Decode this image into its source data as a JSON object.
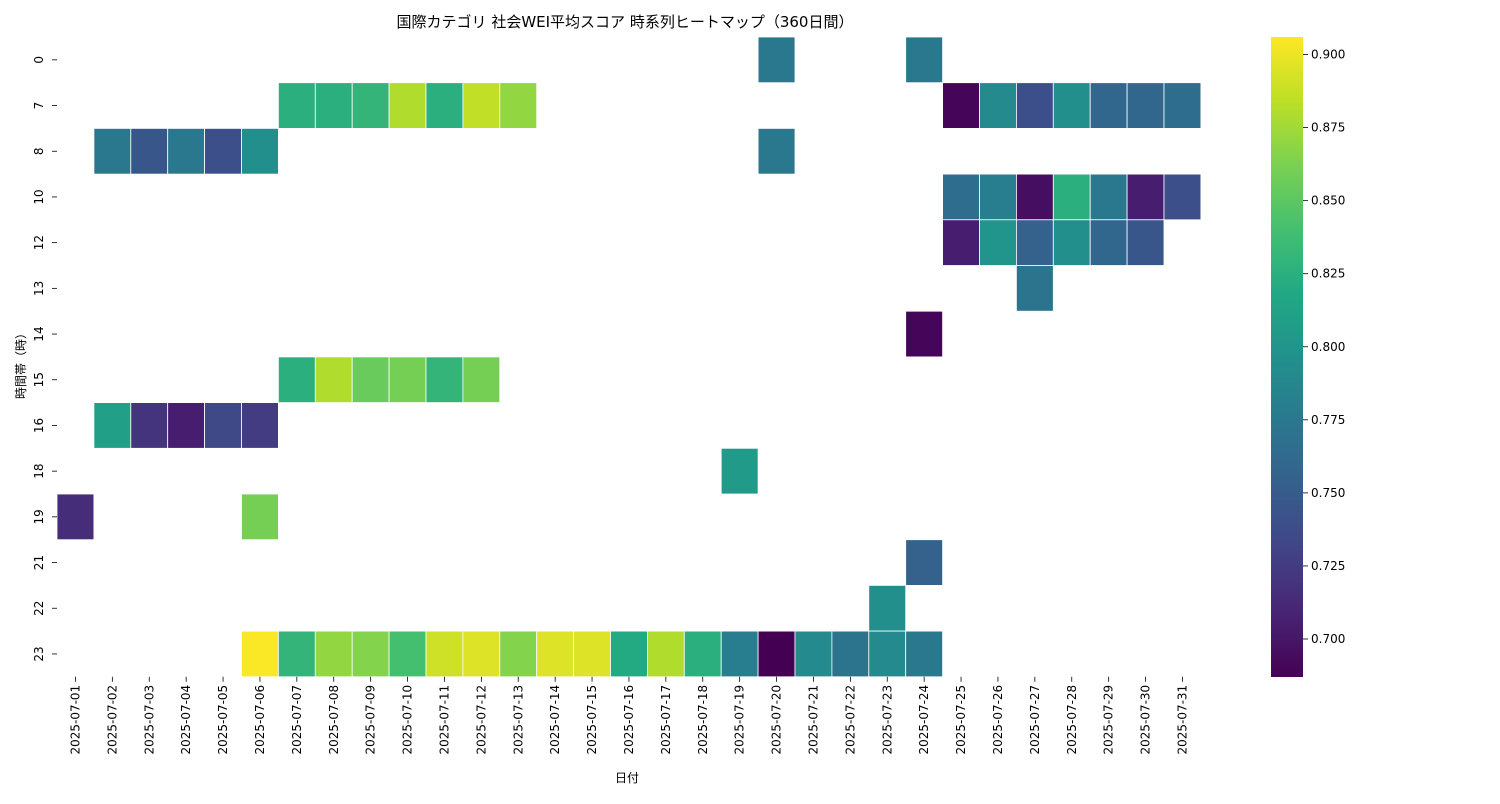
{
  "chart_data": {
    "type": "heatmap",
    "title": "国際カテゴリ 社会WEI平均スコア 時系列ヒートマップ（360日間）",
    "xlabel": "日付",
    "ylabel": "時間帯（時）",
    "x": [
      "2025-07-01",
      "2025-07-02",
      "2025-07-03",
      "2025-07-04",
      "2025-07-05",
      "2025-07-06",
      "2025-07-07",
      "2025-07-08",
      "2025-07-09",
      "2025-07-10",
      "2025-07-11",
      "2025-07-12",
      "2025-07-13",
      "2025-07-14",
      "2025-07-15",
      "2025-07-16",
      "2025-07-17",
      "2025-07-18",
      "2025-07-19",
      "2025-07-20",
      "2025-07-21",
      "2025-07-22",
      "2025-07-23",
      "2025-07-24",
      "2025-07-25",
      "2025-07-26",
      "2025-07-27",
      "2025-07-28",
      "2025-07-29",
      "2025-07-30",
      "2025-07-31"
    ],
    "y": [
      "0",
      "7",
      "8",
      "10",
      "12",
      "13",
      "14",
      "15",
      "16",
      "18",
      "19",
      "21",
      "22",
      "23"
    ],
    "values": [
      [
        null,
        null,
        null,
        null,
        null,
        null,
        null,
        null,
        null,
        null,
        null,
        null,
        null,
        null,
        null,
        null,
        null,
        null,
        null,
        0.775,
        null,
        null,
        null,
        0.775,
        null,
        null,
        null,
        null,
        null,
        null,
        null
      ],
      [
        null,
        null,
        null,
        null,
        null,
        null,
        0.825,
        0.825,
        0.83,
        0.88,
        0.825,
        0.885,
        0.87,
        null,
        null,
        null,
        null,
        null,
        null,
        null,
        null,
        null,
        null,
        null,
        0.69,
        0.79,
        0.74,
        0.795,
        0.76,
        0.76,
        0.765
      ],
      [
        null,
        0.775,
        0.745,
        0.775,
        0.74,
        0.795,
        null,
        null,
        null,
        null,
        null,
        null,
        null,
        null,
        null,
        null,
        null,
        null,
        null,
        0.775,
        null,
        null,
        null,
        null,
        null,
        null,
        null,
        null,
        null,
        null,
        null
      ],
      [
        null,
        null,
        null,
        null,
        null,
        null,
        null,
        null,
        null,
        null,
        null,
        null,
        null,
        null,
        null,
        null,
        null,
        null,
        null,
        null,
        null,
        null,
        null,
        null,
        0.765,
        0.78,
        0.695,
        0.825,
        0.775,
        0.705,
        0.74
      ],
      [
        null,
        null,
        null,
        null,
        null,
        null,
        null,
        null,
        null,
        null,
        null,
        null,
        null,
        null,
        null,
        null,
        null,
        null,
        null,
        null,
        null,
        null,
        null,
        null,
        0.705,
        0.8,
        0.755,
        0.795,
        0.76,
        0.745,
        null
      ],
      [
        null,
        null,
        null,
        null,
        null,
        null,
        null,
        null,
        null,
        null,
        null,
        null,
        null,
        null,
        null,
        null,
        null,
        null,
        null,
        null,
        null,
        null,
        null,
        null,
        null,
        null,
        0.77,
        null,
        null,
        null,
        null
      ],
      [
        null,
        null,
        null,
        null,
        null,
        null,
        null,
        null,
        null,
        null,
        null,
        null,
        null,
        null,
        null,
        null,
        null,
        null,
        null,
        null,
        null,
        null,
        null,
        0.69,
        null,
        null,
        null,
        null,
        null,
        null,
        null
      ],
      [
        null,
        null,
        null,
        null,
        null,
        null,
        0.825,
        0.88,
        0.855,
        0.86,
        0.83,
        0.86,
        null,
        null,
        null,
        null,
        null,
        null,
        null,
        null,
        null,
        null,
        null,
        null,
        null,
        null,
        null,
        null,
        null,
        null,
        null
      ],
      [
        null,
        0.81,
        0.72,
        0.705,
        0.735,
        0.725,
        null,
        null,
        null,
        null,
        null,
        null,
        null,
        null,
        null,
        null,
        null,
        null,
        null,
        null,
        null,
        null,
        null,
        null,
        null,
        null,
        null,
        null,
        null,
        null,
        null
      ],
      [
        null,
        null,
        null,
        null,
        null,
        null,
        null,
        null,
        null,
        null,
        null,
        null,
        null,
        null,
        null,
        null,
        null,
        null,
        0.805,
        null,
        null,
        null,
        null,
        null,
        null,
        null,
        null,
        null,
        null,
        null,
        null
      ],
      [
        0.715,
        null,
        null,
        null,
        null,
        0.86,
        null,
        null,
        null,
        null,
        null,
        null,
        null,
        null,
        null,
        null,
        null,
        null,
        null,
        null,
        null,
        null,
        null,
        null,
        null,
        null,
        null,
        null,
        null,
        null,
        null
      ],
      [
        null,
        null,
        null,
        null,
        null,
        null,
        null,
        null,
        null,
        null,
        null,
        null,
        null,
        null,
        null,
        null,
        null,
        null,
        null,
        null,
        null,
        null,
        null,
        0.755,
        null,
        null,
        null,
        null,
        null,
        null,
        null
      ],
      [
        null,
        null,
        null,
        null,
        null,
        null,
        null,
        null,
        null,
        null,
        null,
        null,
        null,
        null,
        null,
        null,
        null,
        null,
        null,
        null,
        null,
        null,
        0.795,
        null,
        null,
        null,
        null,
        null,
        null,
        null,
        null
      ],
      [
        null,
        null,
        null,
        null,
        null,
        0.905,
        0.83,
        0.87,
        0.865,
        0.84,
        0.89,
        0.895,
        0.865,
        0.895,
        0.895,
        0.82,
        0.88,
        0.825,
        0.78,
        0.687,
        0.79,
        0.77,
        0.79,
        0.775,
        null,
        null,
        null,
        null,
        null,
        null,
        null
      ]
    ],
    "colorbar": {
      "colormap": "viridis",
      "vmin": 0.687,
      "vmax": 0.906,
      "ticks": [
        "0.700",
        "0.725",
        "0.750",
        "0.775",
        "0.800",
        "0.825",
        "0.850",
        "0.875",
        "0.900"
      ]
    },
    "grid": false
  }
}
